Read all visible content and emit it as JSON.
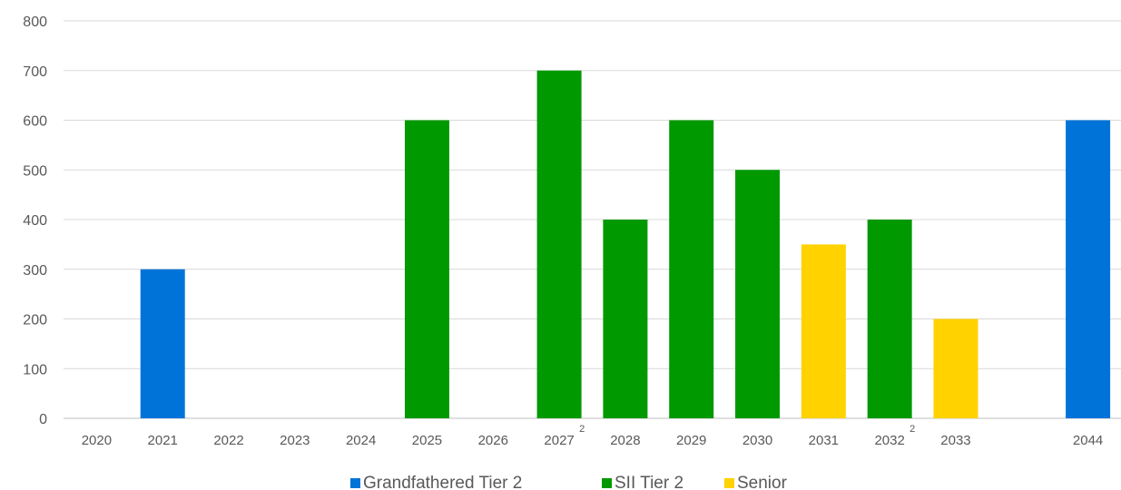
{
  "chart_data": {
    "type": "bar",
    "title": "",
    "xlabel": "",
    "ylabel": "",
    "ylim": [
      0,
      800
    ],
    "yticks": [
      0,
      100,
      200,
      300,
      400,
      500,
      600,
      700,
      800
    ],
    "grid": true,
    "legend_position": "bottom",
    "categories": [
      {
        "label": "2020",
        "note": ""
      },
      {
        "label": "2021",
        "note": ""
      },
      {
        "label": "2022",
        "note": ""
      },
      {
        "label": "2023",
        "note": ""
      },
      {
        "label": "2024",
        "note": ""
      },
      {
        "label": "2025",
        "note": ""
      },
      {
        "label": "2026",
        "note": ""
      },
      {
        "label": "2027",
        "note": "2"
      },
      {
        "label": "2028",
        "note": ""
      },
      {
        "label": "2029",
        "note": ""
      },
      {
        "label": "2030",
        "note": ""
      },
      {
        "label": "2031",
        "note": ""
      },
      {
        "label": "2032",
        "note": "2"
      },
      {
        "label": "2033",
        "note": ""
      },
      {
        "label": "",
        "note": ""
      },
      {
        "label": "2044",
        "note": ""
      }
    ],
    "series": [
      {
        "name": "Grandfathered Tier 2",
        "color": "#0073D9",
        "values": [
          0,
          300,
          0,
          0,
          0,
          0,
          0,
          0,
          0,
          0,
          0,
          0,
          0,
          0,
          0,
          600
        ]
      },
      {
        "name": "SII Tier 2",
        "color": "#009900",
        "values": [
          0,
          0,
          0,
          0,
          0,
          600,
          0,
          700,
          400,
          600,
          500,
          0,
          400,
          0,
          0,
          0
        ]
      },
      {
        "name": "Senior",
        "color": "#FFD200",
        "values": [
          0,
          0,
          0,
          0,
          0,
          0,
          0,
          0,
          0,
          0,
          0,
          350,
          0,
          200,
          0,
          0
        ]
      }
    ]
  }
}
